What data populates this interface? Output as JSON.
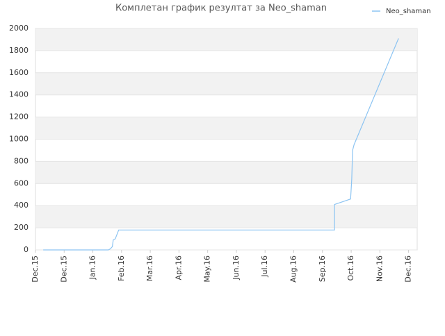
{
  "chart_data": {
    "type": "line",
    "title": "Комплетан график резултат за Neo_shaman",
    "x": [
      0.27,
      2.54,
      2.61,
      2.68,
      2.71,
      2.78,
      2.9,
      10.42,
      10.42,
      10.98,
      11.02,
      11.05,
      11.1,
      12.65
    ],
    "series": [
      {
        "name": "Neo_shaman",
        "color": "#8cc4f2",
        "values": [
          0,
          0,
          10,
          30,
          90,
          100,
          180,
          180,
          410,
          460,
          640,
          900,
          950,
          1910
        ]
      }
    ],
    "xlim": [
      0,
      13.3
    ],
    "xticks": [
      {
        "value": 0,
        "label": "Dec.15"
      },
      {
        "value": 1,
        "label": "Dec.15"
      },
      {
        "value": 2,
        "label": "Jan.16"
      },
      {
        "value": 3,
        "label": "Feb.16"
      },
      {
        "value": 4,
        "label": "Mar.16"
      },
      {
        "value": 5,
        "label": "Apr.16"
      },
      {
        "value": 6,
        "label": "May.16"
      },
      {
        "value": 7,
        "label": "Jun.16"
      },
      {
        "value": 8,
        "label": "Jul.16"
      },
      {
        "value": 9,
        "label": "Aug.16"
      },
      {
        "value": 10,
        "label": "Sep.16"
      },
      {
        "value": 11,
        "label": "Oct.16"
      },
      {
        "value": 12,
        "label": "Nov.16"
      },
      {
        "value": 13,
        "label": "Dec.16"
      }
    ],
    "ylim": [
      0,
      2000
    ],
    "yticks": [
      0,
      200,
      400,
      600,
      800,
      1000,
      1200,
      1400,
      1600,
      1800,
      2000
    ],
    "grid": true,
    "legend": "top-right"
  }
}
